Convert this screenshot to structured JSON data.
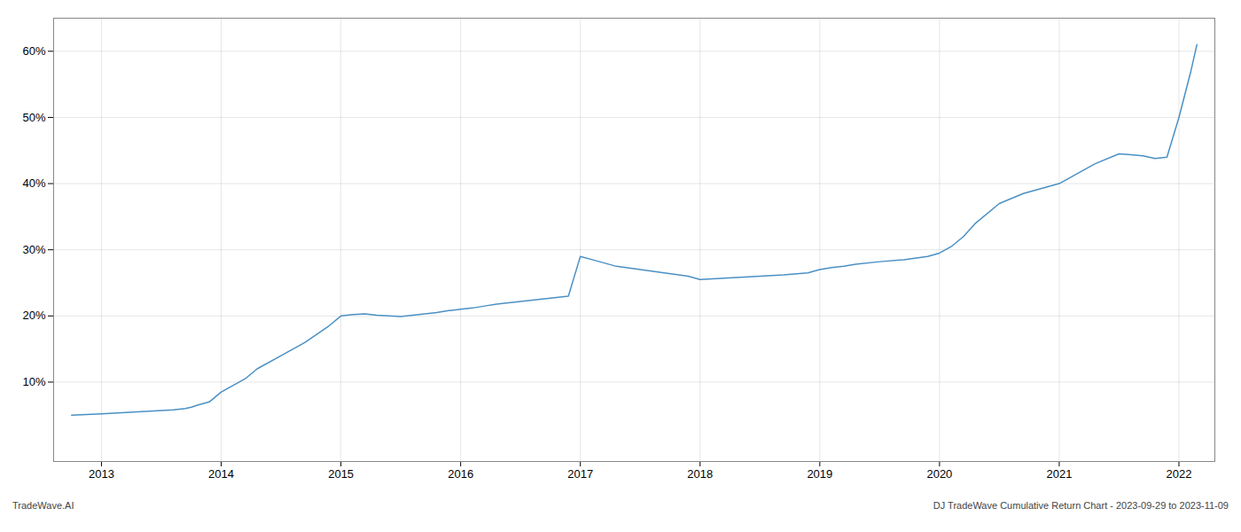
{
  "chart_data": {
    "type": "line",
    "x": [
      2012.75,
      2013.0,
      2013.1,
      2013.2,
      2013.3,
      2013.4,
      2013.5,
      2013.6,
      2013.7,
      2013.75,
      2013.8,
      2013.9,
      2014.0,
      2014.1,
      2014.2,
      2014.3,
      2014.5,
      2014.7,
      2014.9,
      2015.0,
      2015.1,
      2015.2,
      2015.3,
      2015.4,
      2015.5,
      2015.6,
      2015.7,
      2015.8,
      2015.9,
      2016.0,
      2016.1,
      2016.2,
      2016.3,
      2016.4,
      2016.5,
      2016.6,
      2016.7,
      2016.8,
      2016.9,
      2017.0,
      2017.1,
      2017.2,
      2017.3,
      2017.5,
      2017.7,
      2017.9,
      2018.0,
      2018.1,
      2018.2,
      2018.3,
      2018.5,
      2018.7,
      2018.9,
      2019.0,
      2019.1,
      2019.2,
      2019.3,
      2019.5,
      2019.7,
      2019.9,
      2020.0,
      2020.1,
      2020.2,
      2020.3,
      2020.5,
      2020.7,
      2020.9,
      2021.0,
      2021.1,
      2021.2,
      2021.3,
      2021.5,
      2021.7,
      2021.75,
      2021.8,
      2021.9,
      2022.0,
      2022.1,
      2022.15
    ],
    "values": [
      5.0,
      5.2,
      5.3,
      5.4,
      5.5,
      5.6,
      5.7,
      5.8,
      6.0,
      6.2,
      6.5,
      7.0,
      8.5,
      9.5,
      10.5,
      12.0,
      14.0,
      16.0,
      18.5,
      20.0,
      20.2,
      20.3,
      20.1,
      20.0,
      19.9,
      20.1,
      20.3,
      20.5,
      20.8,
      21.0,
      21.2,
      21.5,
      21.8,
      22.0,
      22.2,
      22.4,
      22.6,
      22.8,
      23.0,
      29.0,
      28.5,
      28.0,
      27.5,
      27.0,
      26.5,
      26.0,
      25.5,
      25.6,
      25.7,
      25.8,
      26.0,
      26.2,
      26.5,
      27.0,
      27.3,
      27.5,
      27.8,
      28.2,
      28.5,
      29.0,
      29.5,
      30.5,
      32.0,
      34.0,
      37.0,
      38.5,
      39.5,
      40.0,
      41.0,
      42.0,
      43.0,
      44.5,
      44.2,
      44.0,
      43.8,
      44.0,
      50.0,
      57.0,
      61.0
    ],
    "color": "#4a90c4",
    "xlim": [
      2012.6,
      2022.3
    ],
    "xticks": [
      2013,
      2014,
      2015,
      2016,
      2017,
      2018,
      2019,
      2020,
      2021,
      2022
    ],
    "ylim": [
      -2,
      65
    ],
    "yticks": [
      {
        "value": 10,
        "label": "10%"
      },
      {
        "value": 20,
        "label": "20%"
      },
      {
        "value": 30,
        "label": "30%"
      },
      {
        "value": 40,
        "label": "40%"
      },
      {
        "value": 50,
        "label": "50%"
      },
      {
        "value": 60,
        "label": "60%"
      }
    ],
    "grid": true,
    "annotations": [
      "TradeWave.AI",
      "DJ TradeWave Cumulative Return Chart - 2023-09-29 to 2023-11-09"
    ]
  }
}
